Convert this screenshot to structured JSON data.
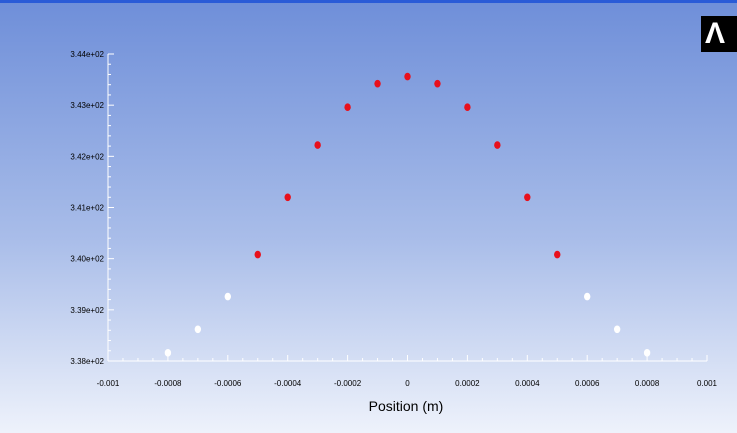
{
  "logo_text": "Λ",
  "colors": {
    "background_top": "#6f8fd9",
    "background_bottom": "#eef2fb",
    "accent_line": "#2a5bd7",
    "red_points": "#e8101c",
    "white_points": "#ffffff"
  },
  "chart_data": {
    "type": "scatter",
    "title": "",
    "xlabel": "Position (m)",
    "ylabel": "",
    "xlim": [
      -0.001,
      0.001
    ],
    "ylim": [
      338.0,
      344.0
    ],
    "x_ticks": [
      "-0.001",
      "-0.0008",
      "-0.0006",
      "-0.0004",
      "-0.0002",
      "0",
      "0.0002",
      "0.0004",
      "0.0006",
      "0.0008",
      "0.001"
    ],
    "x_tick_values": [
      -0.001,
      -0.0008,
      -0.0006,
      -0.0004,
      -0.0002,
      0,
      0.0002,
      0.0004,
      0.0006,
      0.0008,
      0.001
    ],
    "y_ticks": [
      "3.38e+02",
      "3.39e+02",
      "3.40e+02",
      "3.41e+02",
      "3.42e+02",
      "3.43e+02",
      "3.44e+02"
    ],
    "y_tick_values": [
      338,
      339,
      340,
      341,
      342,
      343,
      344
    ],
    "grid": false,
    "series": [
      {
        "color": "#e8101c",
        "points": [
          {
            "x": -0.0005,
            "y": 340.08
          },
          {
            "x": -0.0004,
            "y": 341.2
          },
          {
            "x": -0.0003,
            "y": 342.22
          },
          {
            "x": -0.0002,
            "y": 342.96
          },
          {
            "x": -0.0001,
            "y": 343.42
          },
          {
            "x": 0.0,
            "y": 343.56
          },
          {
            "x": 0.0001,
            "y": 343.42
          },
          {
            "x": 0.0002,
            "y": 342.96
          },
          {
            "x": 0.0003,
            "y": 342.22
          },
          {
            "x": 0.0004,
            "y": 341.2
          },
          {
            "x": 0.0005,
            "y": 340.08
          }
        ]
      },
      {
        "color": "#ffffff",
        "points": [
          {
            "x": -0.0008,
            "y": 338.16
          },
          {
            "x": -0.0007,
            "y": 338.62
          },
          {
            "x": -0.0006,
            "y": 339.26
          },
          {
            "x": 0.0006,
            "y": 339.26
          },
          {
            "x": 0.0007,
            "y": 338.62
          },
          {
            "x": 0.0008,
            "y": 338.16
          }
        ]
      }
    ]
  }
}
